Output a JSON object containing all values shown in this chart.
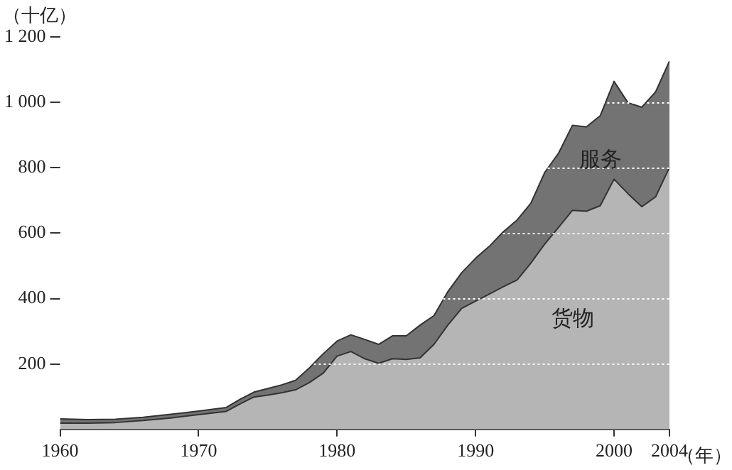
{
  "chart_data": {
    "type": "area",
    "stacked": true,
    "ylabel": "（十亿）",
    "xlabel": "（年）",
    "x": [
      1960,
      1962,
      1964,
      1966,
      1968,
      1970,
      1972,
      1973,
      1974,
      1975,
      1976,
      1977,
      1978,
      1979,
      1980,
      1981,
      1982,
      1983,
      1984,
      1985,
      1986,
      1987,
      1988,
      1989,
      1990,
      1991,
      1992,
      1993,
      1994,
      1995,
      1996,
      1997,
      1998,
      1999,
      2000,
      2001,
      2002,
      2003,
      2004
    ],
    "series": [
      {
        "name": "货物",
        "color": "#b5b5b5",
        "values": [
          19,
          19,
          21,
          27,
          35,
          45,
          55,
          78,
          99,
          105,
          112,
          121,
          143,
          172,
          224,
          238,
          216,
          202,
          216,
          214,
          219,
          260,
          319,
          370,
          392,
          414,
          436,
          457,
          509,
          567,
          618,
          670,
          667,
          684,
          765,
          721,
          681,
          711,
          801
        ]
      },
      {
        "name": "服务",
        "color": "#737373",
        "values": [
          13,
          11,
          10,
          10,
          11,
          11,
          12,
          14,
          15,
          20,
          24,
          29,
          45,
          59,
          46,
          51,
          59,
          58,
          70,
          72,
          100,
          88,
          102,
          109,
          131,
          146,
          168,
          183,
          183,
          219,
          227,
          260,
          258,
          275,
          299,
          278,
          304,
          321,
          325
        ]
      }
    ],
    "xlim": [
      1960,
      2004
    ],
    "xticks": [
      1960,
      1970,
      1980,
      1990,
      2000,
      2004
    ],
    "ylim": [
      0,
      1200
    ],
    "yticks": [
      200,
      400,
      600,
      800,
      {
        "value": 1000,
        "label": "1 000"
      },
      {
        "value": 1200,
        "label": "1 200"
      }
    ],
    "grid": "y"
  }
}
